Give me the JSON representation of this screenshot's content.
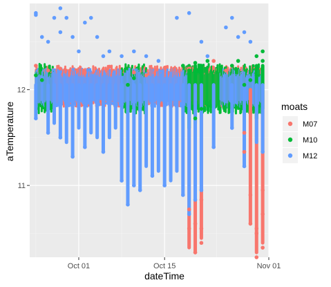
{
  "chart_data": {
    "type": "scatter",
    "title": "",
    "xlabel": "dateTime",
    "ylabel": "aTemperature",
    "x_ticks": [
      "Oct 01",
      "Oct 15",
      "Nov 01"
    ],
    "x_tick_dates": [
      "2020-10-01",
      "2020-10-15",
      "2020-11-01"
    ],
    "x_range": [
      "2020-09-23",
      "2020-11-01"
    ],
    "y_ticks": [
      11,
      12
    ],
    "y_range": [
      10.25,
      12.9
    ],
    "grid": true,
    "legend": {
      "title": "moats",
      "position": "right",
      "entries": [
        "M07",
        "M10",
        "M12"
      ]
    },
    "series": [
      {
        "name": "M07",
        "color": "#F8766D",
        "points": [
          [
            "2020-09-24",
            12.25
          ],
          [
            "2020-09-26",
            12.2
          ],
          [
            "2020-09-28",
            12.22
          ],
          [
            "2020-10-02",
            12.18
          ],
          [
            "2020-10-06",
            12.24
          ],
          [
            "2020-10-10",
            12.18
          ],
          [
            "2020-10-12",
            12.15
          ],
          [
            "2020-10-19",
            12.22
          ],
          [
            "2020-10-19",
            10.75
          ],
          [
            "2020-10-19",
            10.55
          ],
          [
            "2020-10-20",
            10.3
          ],
          [
            "2020-10-20",
            10.6
          ],
          [
            "2020-10-21",
            10.4
          ],
          [
            "2020-10-21",
            10.55
          ],
          [
            "2020-10-21",
            10.85
          ],
          [
            "2020-10-23",
            12.3
          ],
          [
            "2020-10-25",
            12.2
          ],
          [
            "2020-10-28",
            11.35
          ],
          [
            "2020-10-28",
            11.55
          ],
          [
            "2020-10-29",
            10.9
          ],
          [
            "2020-10-29",
            10.6
          ],
          [
            "2020-10-30",
            10.5
          ],
          [
            "2020-10-30",
            10.25
          ],
          [
            "2020-10-30",
            10.55
          ],
          [
            "2020-10-31",
            10.35
          ],
          [
            "2020-10-31",
            10.7
          ],
          [
            "2020-10-31",
            10.95
          ]
        ]
      },
      {
        "name": "M10",
        "color": "#00BA38",
        "points": [
          [
            "2020-09-24",
            12.15
          ],
          [
            "2020-09-25",
            12.1
          ],
          [
            "2020-10-09",
            12.05
          ],
          [
            "2020-10-10",
            12.12
          ],
          [
            "2020-10-18",
            12.25
          ],
          [
            "2020-10-19",
            12.2
          ],
          [
            "2020-10-20",
            12.28
          ],
          [
            "2020-10-20",
            11.7
          ],
          [
            "2020-10-21",
            11.8
          ],
          [
            "2020-10-21",
            12.25
          ],
          [
            "2020-10-22",
            12.3
          ],
          [
            "2020-10-26",
            12.25
          ],
          [
            "2020-10-27",
            12.3
          ],
          [
            "2020-10-28",
            12.05
          ],
          [
            "2020-10-29",
            12.1
          ],
          [
            "2020-10-30",
            12.15
          ],
          [
            "2020-10-30",
            12.35
          ],
          [
            "2020-10-31",
            12.3
          ],
          [
            "2020-10-31",
            12.4
          ]
        ]
      },
      {
        "name": "M12",
        "color": "#619CFF",
        "points": [
          [
            "2020-09-24",
            12.8
          ],
          [
            "2020-09-24",
            12.78
          ],
          [
            "2020-09-25",
            12.55
          ],
          [
            "2020-09-26",
            12.5
          ],
          [
            "2020-09-27",
            12.75
          ],
          [
            "2020-09-28",
            12.6
          ],
          [
            "2020-09-28",
            12.85
          ],
          [
            "2020-09-29",
            12.75
          ],
          [
            "2020-09-30",
            12.55
          ],
          [
            "2020-10-01",
            12.4
          ],
          [
            "2020-10-02",
            12.7
          ],
          [
            "2020-10-03",
            12.75
          ],
          [
            "2020-10-04",
            12.55
          ],
          [
            "2020-10-05",
            12.35
          ],
          [
            "2020-10-06",
            12.4
          ],
          [
            "2020-10-08",
            12.35
          ],
          [
            "2020-10-10",
            12.4
          ],
          [
            "2020-10-12",
            12.35
          ],
          [
            "2020-10-14",
            12.3
          ],
          [
            "2020-10-17",
            12.75
          ],
          [
            "2020-10-19",
            12.8
          ],
          [
            "2020-10-21",
            12.5
          ],
          [
            "2020-10-22",
            12.35
          ],
          [
            "2020-10-25",
            12.65
          ],
          [
            "2020-10-26",
            12.75
          ],
          [
            "2020-10-27",
            12.55
          ],
          [
            "2020-10-28",
            12.6
          ],
          [
            "2020-10-29",
            12.5
          ],
          [
            "2020-09-24",
            11.7
          ],
          [
            "2020-09-26",
            11.55
          ],
          [
            "2020-09-28",
            11.5
          ],
          [
            "2020-09-30",
            11.3
          ],
          [
            "2020-10-02",
            11.4
          ],
          [
            "2020-10-05",
            11.35
          ],
          [
            "2020-10-08",
            11.05
          ],
          [
            "2020-10-09",
            10.8
          ],
          [
            "2020-10-10",
            11.0
          ],
          [
            "2020-10-11",
            10.95
          ],
          [
            "2020-10-13",
            11.1
          ],
          [
            "2020-10-15",
            11.0
          ],
          [
            "2020-10-18",
            10.9
          ],
          [
            "2020-10-19",
            10.7
          ],
          [
            "2020-10-20",
            10.85
          ],
          [
            "2020-10-21",
            10.95
          ],
          [
            "2020-10-23",
            11.4
          ],
          [
            "2020-10-26",
            11.6
          ],
          [
            "2020-10-28",
            11.2
          ],
          [
            "2020-10-31",
            11.35
          ]
        ]
      }
    ]
  }
}
